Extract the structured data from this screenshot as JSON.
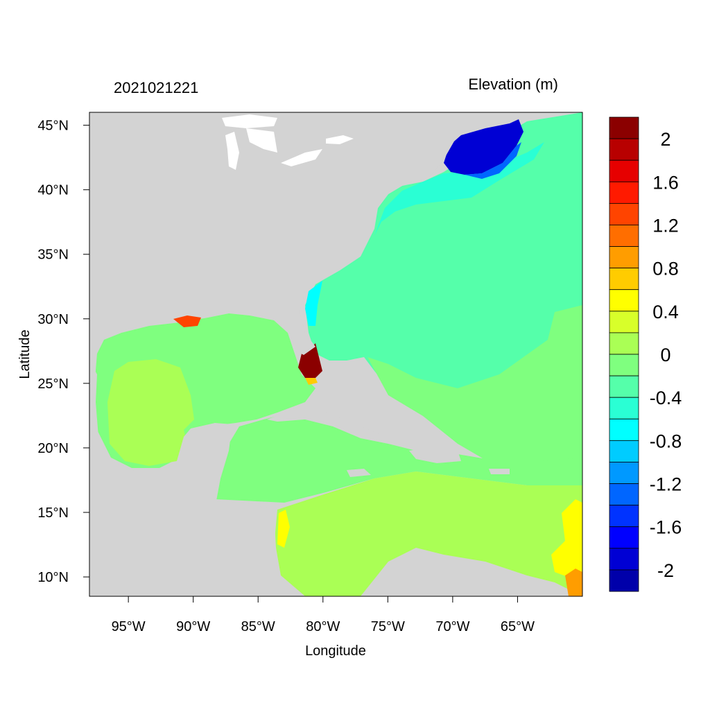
{
  "map": {
    "date_label": "2021021221",
    "variable_label": "Elevation (m)",
    "xlabel": "Longitude",
    "ylabel": "Latitude",
    "lon_range": [
      -98,
      -60
    ],
    "lat_range": [
      8.5,
      46
    ],
    "x_ticks": [
      {
        "value": -95,
        "label": "95°W"
      },
      {
        "value": -90,
        "label": "90°W"
      },
      {
        "value": -85,
        "label": "85°W"
      },
      {
        "value": -80,
        "label": "80°W"
      },
      {
        "value": -75,
        "label": "75°W"
      },
      {
        "value": -70,
        "label": "70°W"
      },
      {
        "value": -65,
        "label": "65°W"
      }
    ],
    "y_ticks": [
      {
        "value": 45,
        "label": "45°N"
      },
      {
        "value": 40,
        "label": "40°N"
      },
      {
        "value": 35,
        "label": "35°N"
      },
      {
        "value": 30,
        "label": "30°N"
      },
      {
        "value": 25,
        "label": "25°N"
      },
      {
        "value": 20,
        "label": "20°N"
      },
      {
        "value": 15,
        "label": "15°N"
      },
      {
        "value": 10,
        "label": "10°N"
      }
    ],
    "colors": {
      "land": "#d3d3d3",
      "frame": "#000000"
    }
  },
  "colorbar": {
    "levels": [
      {
        "color": "#8b0000"
      },
      {
        "color": "#b80000"
      },
      {
        "color": "#e60000"
      },
      {
        "color": "#ff1a00"
      },
      {
        "color": "#ff4400"
      },
      {
        "color": "#ff6e00"
      },
      {
        "color": "#ff9d00"
      },
      {
        "color": "#ffcc00"
      },
      {
        "color": "#ffff00"
      },
      {
        "color": "#d8ff2a"
      },
      {
        "color": "#aaff55"
      },
      {
        "color": "#7fff7f"
      },
      {
        "color": "#55ffaa"
      },
      {
        "color": "#2affd4"
      },
      {
        "color": "#00ffff"
      },
      {
        "color": "#00ccff"
      },
      {
        "color": "#0099ff"
      },
      {
        "color": "#0066ff"
      },
      {
        "color": "#0033ff"
      },
      {
        "color": "#0000ff"
      },
      {
        "color": "#0000d4"
      },
      {
        "color": "#0000aa"
      }
    ],
    "labels": [
      {
        "boundary": 1,
        "text": "2"
      },
      {
        "boundary": 3,
        "text": "1.6"
      },
      {
        "boundary": 5,
        "text": "1.2"
      },
      {
        "boundary": 7,
        "text": "0.8"
      },
      {
        "boundary": 9,
        "text": "0.4"
      },
      {
        "boundary": 11,
        "text": "0"
      },
      {
        "boundary": 13,
        "text": "-0.4"
      },
      {
        "boundary": 15,
        "text": "-0.8"
      },
      {
        "boundary": 17,
        "text": "-1.2"
      },
      {
        "boundary": 19,
        "text": "-1.6"
      },
      {
        "boundary": 21,
        "text": "-2"
      }
    ]
  },
  "regions": [
    {
      "name": "gulf-of-mexico",
      "value": 0.1,
      "color": "#aaff55"
    },
    {
      "name": "caribbean-sea-north",
      "value": -0.1,
      "color": "#7fff7f"
    },
    {
      "name": "caribbean-sea-south",
      "value": 0.1,
      "color": "#aaff55"
    },
    {
      "name": "western-atlantic",
      "value": -0.3,
      "color": "#55ffaa"
    },
    {
      "name": "gulf-of-maine",
      "value": -2.0,
      "color": "#0000d4"
    },
    {
      "name": "south-florida-coast",
      "value": 2.2,
      "color": "#8b0000"
    }
  ]
}
